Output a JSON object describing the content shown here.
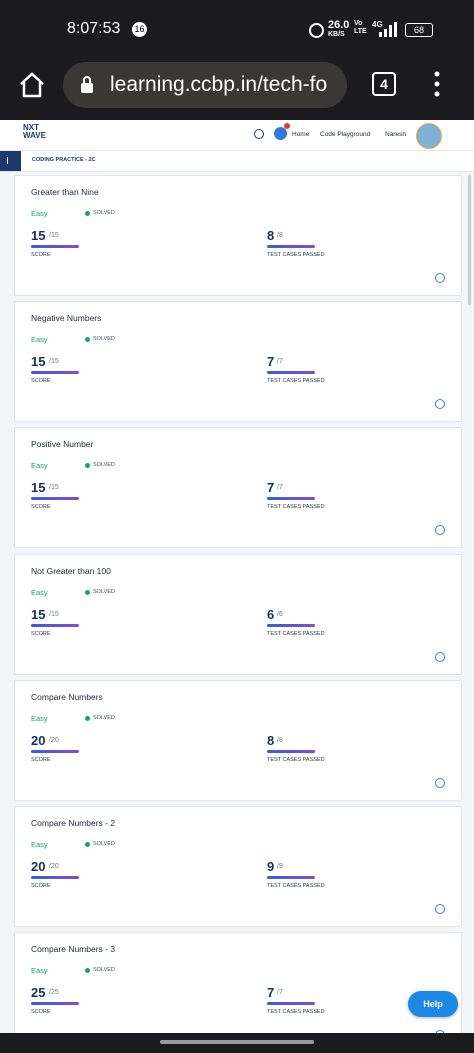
{
  "status_bar": {
    "time": "8:07:53",
    "notification_count": "16",
    "speed": "26.0",
    "speed_unit": "KB/S",
    "volte": "Vo LTE",
    "network": "4G",
    "battery": "68"
  },
  "browser": {
    "url": "learning.ccbp.in/tech-fo",
    "tab_count": "4"
  },
  "header": {
    "logo_line1": "NXT",
    "logo_line2": "WAVE",
    "nav": [
      "Home",
      "Code Playground",
      "Naresh"
    ]
  },
  "breadcrumb": "CODING PRACTICE - 2C",
  "cards": [
    {
      "title": "Greater than Nine",
      "difficulty": "Easy",
      "status": "SOLVED",
      "score": "15",
      "score_max": "/15",
      "score_label": "SCORE",
      "passed": "8",
      "passed_max": "/8",
      "passed_label": "TEST CASES PASSED"
    },
    {
      "title": "Negative Numbers",
      "difficulty": "Easy",
      "status": "SOLVED",
      "score": "15",
      "score_max": "/15",
      "score_label": "SCORE",
      "passed": "7",
      "passed_max": "/7",
      "passed_label": "TEST CASES PASSED"
    },
    {
      "title": "Positive Number",
      "difficulty": "Easy",
      "status": "SOLVED",
      "score": "15",
      "score_max": "/15",
      "score_label": "SCORE",
      "passed": "7",
      "passed_max": "/7",
      "passed_label": "TEST CASES PASSED"
    },
    {
      "title": "Not Greater than 100",
      "difficulty": "Easy",
      "status": "SOLVED",
      "score": "15",
      "score_max": "/15",
      "score_label": "SCORE",
      "passed": "6",
      "passed_max": "/6",
      "passed_label": "TEST CASES PASSED"
    },
    {
      "title": "Compare Numbers",
      "difficulty": "Easy",
      "status": "SOLVED",
      "score": "20",
      "score_max": "/20",
      "score_label": "SCORE",
      "passed": "8",
      "passed_max": "/8",
      "passed_label": "TEST CASES PASSED"
    },
    {
      "title": "Compare Numbers - 2",
      "difficulty": "Easy",
      "status": "SOLVED",
      "score": "20",
      "score_max": "/20",
      "score_label": "SCORE",
      "passed": "9",
      "passed_max": "/9",
      "passed_label": "TEST CASES PASSED"
    },
    {
      "title": "Compare Numbers - 3",
      "difficulty": "Easy",
      "status": "SOLVED",
      "score": "25",
      "score_max": "/25",
      "score_label": "SCORE",
      "passed": "7",
      "passed_max": "/7",
      "passed_label": "TEST CASES PASSED"
    }
  ],
  "help_button": "Help"
}
